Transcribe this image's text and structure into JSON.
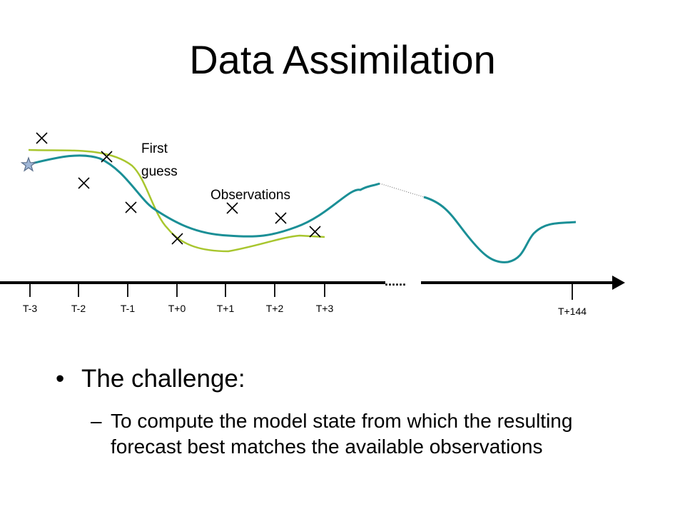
{
  "slide": {
    "title": "Data Assimilation",
    "bullet": "The challenge:",
    "sub_bullet": "To compute the model state from which the resulting forecast best matches the available observations",
    "sub_dash": "–",
    "bullet_marker": "•"
  },
  "diagram": {
    "time_labels": [
      "T-3",
      "T-2",
      "T-1",
      "T+0",
      "T+1",
      "T+2",
      "T+3"
    ],
    "final_label": "T+144",
    "gap_marker": "......",
    "first_guess_label": [
      "First",
      "guess"
    ],
    "observations_label": "Observations",
    "icons": {
      "analysis": "star-icon",
      "observation": "x-mark-icon"
    },
    "colors": {
      "first_guess": "#a8c62e",
      "forecast": "#1a8f96",
      "axis": "#000000",
      "star": "#9fb6d6"
    }
  }
}
